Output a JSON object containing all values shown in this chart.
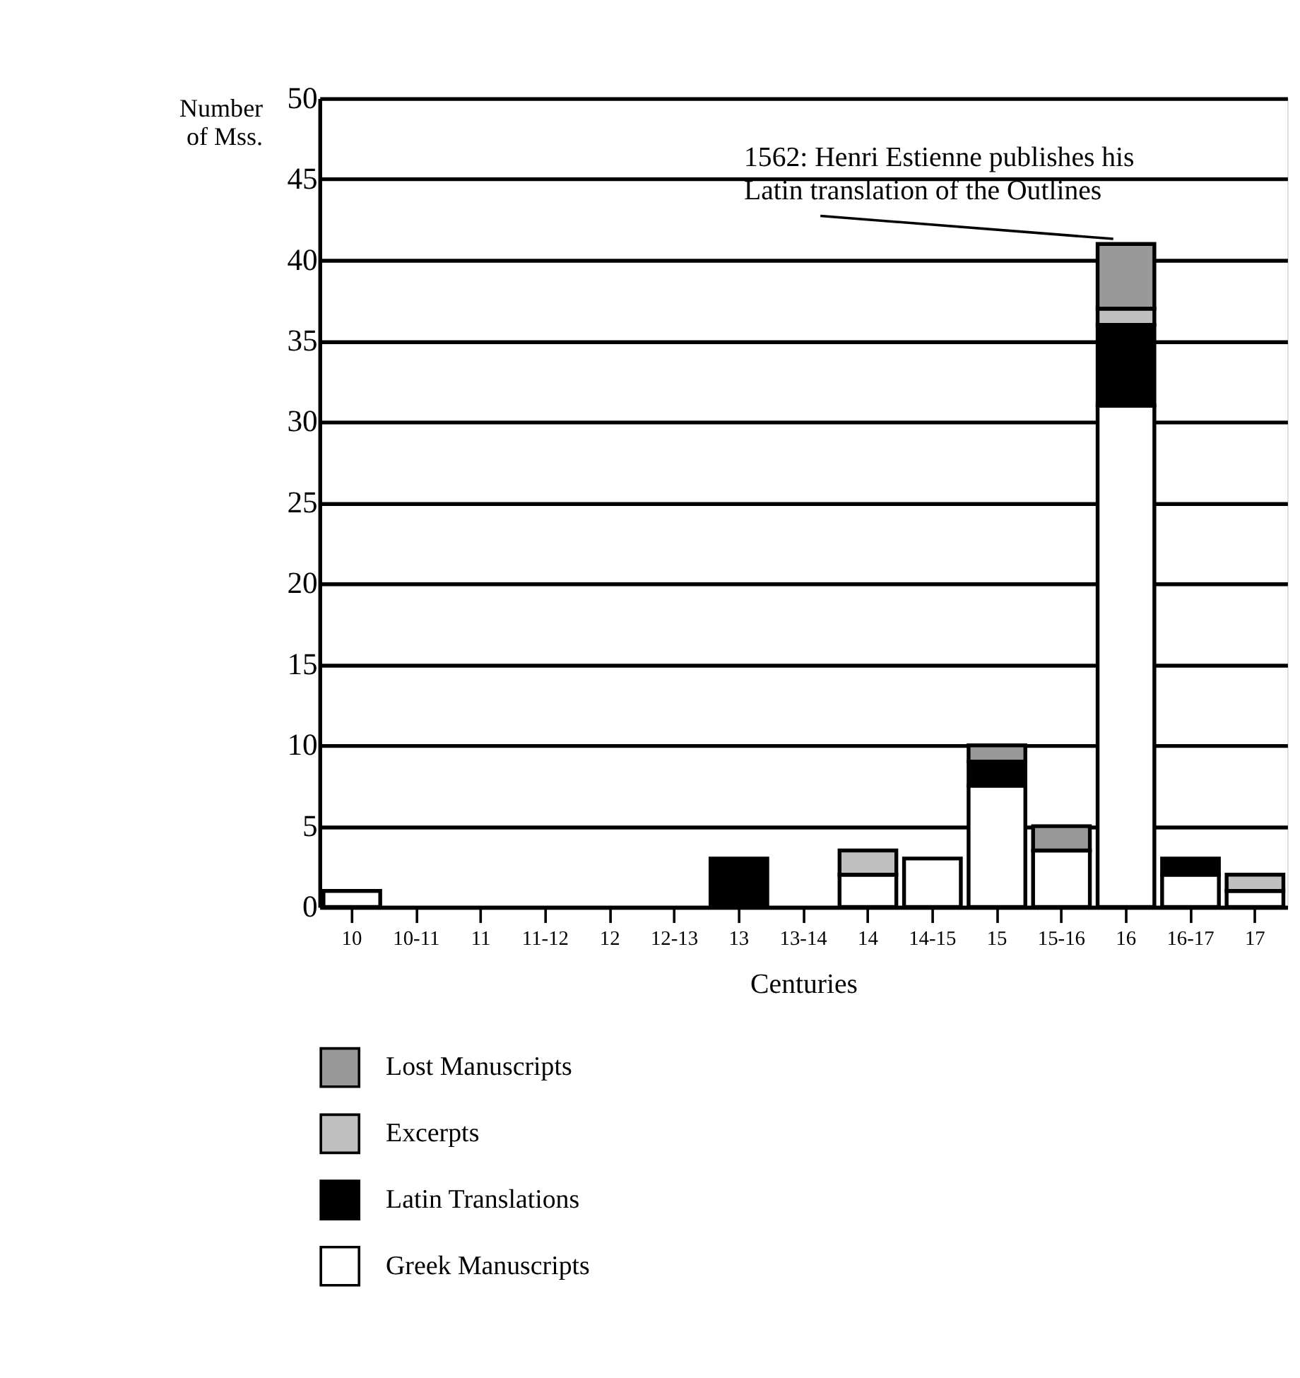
{
  "chart_data": {
    "type": "bar",
    "stacked": true,
    "xlabel": "Centuries",
    "ylabel": "Number of Mss.",
    "categories": [
      "10",
      "10-11",
      "11",
      "11-12",
      "12",
      "12-13",
      "13",
      "13-14",
      "14",
      "14-15",
      "15",
      "15-16",
      "16",
      "16-17",
      "17"
    ],
    "series": [
      {
        "name": "Greek Manuscripts",
        "color": "#ffffff",
        "values": [
          1,
          null,
          null,
          null,
          null,
          null,
          null,
          null,
          2,
          3,
          7.5,
          3.5,
          31,
          2,
          1
        ]
      },
      {
        "name": "Latin Translations",
        "color": "#000000",
        "values": [
          null,
          null,
          null,
          null,
          null,
          null,
          3,
          null,
          null,
          null,
          1.5,
          null,
          5,
          1,
          null
        ]
      },
      {
        "name": "Excerpts",
        "color": "#c0c0c0",
        "values": [
          null,
          null,
          null,
          null,
          null,
          null,
          null,
          null,
          1.5,
          null,
          null,
          null,
          1,
          null,
          1
        ]
      },
      {
        "name": "Lost Manuscripts",
        "color": "#999999",
        "values": [
          null,
          null,
          null,
          null,
          null,
          null,
          null,
          null,
          null,
          null,
          1,
          1.5,
          4,
          null,
          null
        ]
      }
    ],
    "ylim": [
      0,
      50
    ],
    "yticks": [
      0,
      5,
      10,
      15,
      20,
      25,
      30,
      35,
      40,
      45,
      50
    ],
    "grid": "y",
    "legend": "bottom left",
    "annotations": [
      {
        "text": "1562: Henri Estienne publishes his Latin translation of the Outlines",
        "x": "16",
        "y": 41
      }
    ]
  }
}
